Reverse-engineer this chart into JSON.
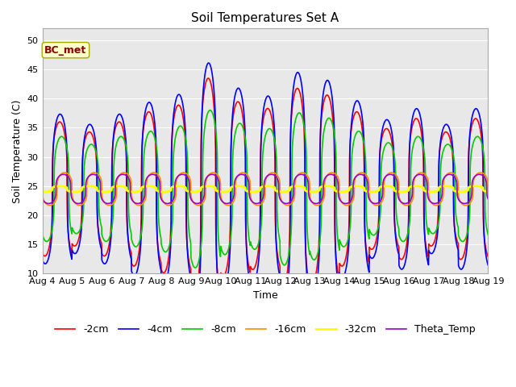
{
  "title": "Soil Temperatures Set A",
  "xlabel": "Time",
  "ylabel": "Soil Temperature (C)",
  "ylim": [
    10,
    52
  ],
  "yticks": [
    10,
    15,
    20,
    25,
    30,
    35,
    40,
    45,
    50
  ],
  "bg_color": "#e8e8e8",
  "annotation_text": "BC_met",
  "annotation_color": "#8B0000",
  "annotation_bg": "#ffffcc",
  "series": {
    "-2cm": {
      "color": "#FF0000",
      "lw": 1.2
    },
    "-4cm": {
      "color": "#0000FF",
      "lw": 1.2
    },
    "-8cm": {
      "color": "#00CC00",
      "lw": 1.2
    },
    "-16cm": {
      "color": "#FF8C00",
      "lw": 1.2
    },
    "-32cm": {
      "color": "#FFFF00",
      "lw": 2.0
    },
    "Theta_Temp": {
      "color": "#9900CC",
      "lw": 1.2
    }
  },
  "legend_order": [
    "-2cm",
    "-4cm",
    "-8cm",
    "-16cm",
    "-32cm",
    "Theta_Temp"
  ],
  "x_tick_labels": [
    "Aug 4",
    "Aug 5",
    "Aug 6",
    "Aug 7",
    "Aug 8",
    "Aug 9",
    "Aug 10",
    "Aug 11",
    "Aug 12",
    "Aug 13",
    "Aug 14",
    "Aug 15",
    "Aug 16",
    "Aug 17",
    "Aug 18",
    "Aug 19"
  ],
  "num_days": 15,
  "points_per_day": 144,
  "base_temp": 24.5,
  "peak_hour": 14.0,
  "sharpness": 3.5,
  "series_params": {
    "-2cm": {
      "amp_base": 11.5,
      "phase_hour": 0.0,
      "amp_day_scale": [
        1.0,
        0.85,
        1.0,
        1.15,
        1.25,
        1.65,
        1.3,
        1.2,
        1.5,
        1.4,
        1.15,
        0.9,
        1.05,
        0.85,
        1.05
      ]
    },
    "-4cm": {
      "amp_base": 13.5,
      "phase_hour": 0.3,
      "amp_day_scale": [
        0.95,
        0.82,
        0.95,
        1.1,
        1.2,
        1.6,
        1.28,
        1.18,
        1.48,
        1.38,
        1.12,
        0.88,
        1.02,
        0.82,
        1.02
      ]
    },
    "-8cm": {
      "amp_base": 9.0,
      "phase_hour": 1.5,
      "amp_day_scale": [
        1.0,
        0.85,
        1.0,
        1.1,
        1.2,
        1.5,
        1.25,
        1.15,
        1.45,
        1.35,
        1.1,
        0.88,
        1.0,
        0.85,
        1.0
      ]
    },
    "-16cm": {
      "amp_base": 2.8,
      "phase_hour": 4.0,
      "amp_day_scale": [
        1.0,
        1.0,
        1.0,
        1.0,
        1.0,
        1.0,
        1.0,
        1.0,
        1.0,
        1.0,
        1.0,
        1.0,
        1.0,
        1.0,
        1.0
      ]
    },
    "-32cm": {
      "amp_base": 0.5,
      "phase_hour": 0.0,
      "amp_day_scale": [
        1.0,
        1.0,
        1.0,
        1.0,
        1.0,
        1.0,
        1.0,
        1.0,
        1.0,
        1.0,
        1.0,
        1.0,
        1.0,
        1.0,
        1.0
      ]
    },
    "Theta_Temp": {
      "amp_base": 2.5,
      "phase_hour": 3.0,
      "amp_day_scale": [
        1.0,
        1.0,
        1.0,
        1.0,
        1.0,
        1.0,
        1.0,
        1.0,
        1.0,
        1.0,
        1.0,
        1.0,
        1.0,
        1.0,
        1.0
      ]
    }
  }
}
